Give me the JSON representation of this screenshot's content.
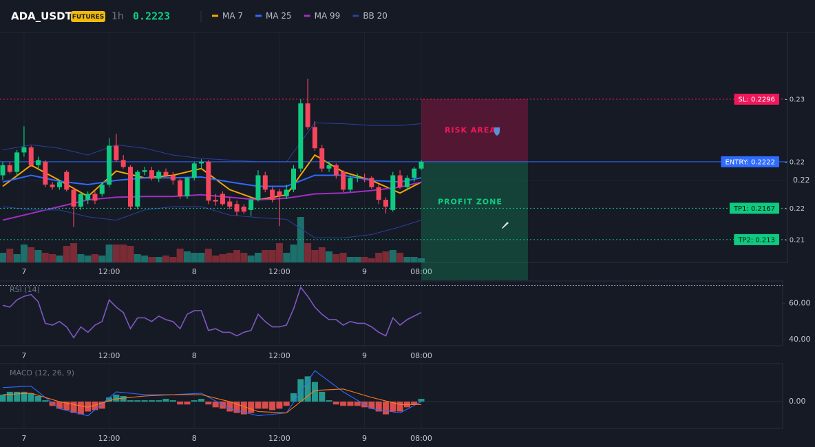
{
  "header": {
    "symbol": "ADA_USDT",
    "badge": "FUTURES",
    "interval": "1h",
    "price": 0.2223
  },
  "chart_data": [
    {
      "type": "candlestick",
      "categories": [
        null,
        null,
        null,
        "7",
        null,
        null,
        null,
        null,
        null,
        null,
        null,
        null,
        null,
        null,
        null,
        "12:00",
        null,
        null,
        null,
        null,
        null,
        null,
        null,
        null,
        null,
        null,
        null,
        "8",
        null,
        null,
        null,
        null,
        null,
        null,
        null,
        null,
        null,
        null,
        null,
        "12:00",
        null,
        null,
        null,
        null,
        null,
        null,
        null,
        null,
        null,
        null,
        null,
        "9",
        null,
        null,
        null,
        null,
        null,
        null,
        null,
        "08:00"
      ],
      "open": [
        0.2206,
        0.2218,
        0.221,
        0.2233,
        0.2239,
        0.2218,
        0.2222,
        0.2195,
        0.2192,
        0.221,
        0.2189,
        0.2169,
        0.2177,
        0.2184,
        0.2184,
        0.2195,
        0.2241,
        0.2224,
        0.2216,
        0.2169,
        0.221,
        0.2212,
        0.2202,
        0.221,
        0.2206,
        0.22,
        0.2181,
        0.2203,
        0.222,
        0.2222,
        0.2177,
        0.2184,
        0.2175,
        0.2172,
        0.2169,
        0.2165,
        0.2177,
        0.2206,
        0.2189,
        0.2187,
        0.2181,
        0.2189,
        0.2214,
        0.2291,
        0.2263,
        0.2238,
        0.2214,
        0.2218,
        0.221,
        0.2189,
        0.2203,
        0.2203,
        0.2203,
        0.2192,
        0.2177,
        0.2165,
        0.2206,
        0.2192,
        0.2203,
        0.2214
      ],
      "high": [
        0.2222,
        0.2222,
        0.2236,
        0.2264,
        0.2241,
        0.2228,
        0.2224,
        0.2198,
        0.22,
        0.2212,
        0.2192,
        0.2186,
        0.2187,
        0.2187,
        0.2198,
        0.225,
        0.2255,
        0.223,
        0.2218,
        0.2212,
        0.2216,
        0.2216,
        0.2212,
        0.2214,
        0.221,
        0.2202,
        0.2204,
        0.2222,
        0.2225,
        0.2224,
        0.2184,
        0.2187,
        0.218,
        0.2176,
        0.2172,
        0.218,
        0.2212,
        0.221,
        0.2192,
        0.219,
        0.2195,
        0.2218,
        0.2296,
        0.232,
        0.227,
        0.2242,
        0.2222,
        0.222,
        0.2212,
        0.2206,
        0.2208,
        0.2208,
        0.2205,
        0.2196,
        0.218,
        0.221,
        0.2212,
        0.2206,
        0.2216,
        0.2224
      ],
      "low": [
        0.22,
        0.2208,
        0.2206,
        0.2228,
        0.2216,
        0.2214,
        0.2192,
        0.2189,
        0.2189,
        0.2187,
        0.2145,
        0.2165,
        0.2172,
        0.2172,
        0.2181,
        0.2192,
        0.2222,
        0.2214,
        0.2165,
        0.2166,
        0.2206,
        0.22,
        0.2198,
        0.2204,
        0.2195,
        0.2178,
        0.2178,
        0.22,
        0.2214,
        0.2172,
        0.217,
        0.217,
        0.2166,
        0.2158,
        0.216,
        0.2158,
        0.2175,
        0.2186,
        0.2174,
        0.2146,
        0.2178,
        0.2186,
        0.221,
        0.226,
        0.2235,
        0.221,
        0.221,
        0.2202,
        0.2186,
        0.2186,
        0.2198,
        0.2198,
        0.219,
        0.2172,
        0.2161,
        0.2163,
        0.219,
        0.2188,
        0.2198,
        0.2212
      ],
      "close": [
        0.2218,
        0.221,
        0.2233,
        0.2239,
        0.2218,
        0.2224,
        0.2195,
        0.2192,
        0.2198,
        0.2189,
        0.2169,
        0.2184,
        0.2184,
        0.2176,
        0.2195,
        0.2241,
        0.2224,
        0.2216,
        0.2169,
        0.221,
        0.2212,
        0.2202,
        0.221,
        0.2206,
        0.22,
        0.2181,
        0.2203,
        0.222,
        0.2222,
        0.2176,
        0.2175,
        0.2172,
        0.2169,
        0.2163,
        0.2163,
        0.2177,
        0.2206,
        0.2189,
        0.2177,
        0.2181,
        0.2189,
        0.2214,
        0.2291,
        0.2263,
        0.2238,
        0.2214,
        0.2218,
        0.2206,
        0.2189,
        0.2203,
        0.2204,
        0.2202,
        0.2192,
        0.2177,
        0.2169,
        0.2206,
        0.2192,
        0.2203,
        0.2214,
        0.2222
      ],
      "up_color": "#0ecb81",
      "down_color": "#f6465d",
      "ylim": [
        0.2103,
        0.2375
      ],
      "yticks": [
        0.22
      ],
      "grid": true,
      "series": [
        {
          "name": "MA 7",
          "color": "#f7a600",
          "x": [
            0,
            4,
            8,
            12,
            16,
            20,
            24,
            28,
            32,
            36,
            40,
            44,
            48,
            52,
            56,
            59
          ],
          "values": [
            0.2193,
            0.2218,
            0.22,
            0.2181,
            0.2211,
            0.2203,
            0.2206,
            0.2214,
            0.2189,
            0.2177,
            0.2183,
            0.223,
            0.221,
            0.22,
            0.2185,
            0.2198
          ]
        },
        {
          "name": "MA 25",
          "color": "#2f6bff",
          "x": [
            0,
            4,
            8,
            12,
            16,
            20,
            24,
            28,
            32,
            36,
            40,
            44,
            48,
            52,
            56,
            59
          ],
          "values": [
            0.2198,
            0.2206,
            0.2199,
            0.2195,
            0.22,
            0.2203,
            0.2203,
            0.2204,
            0.2198,
            0.2193,
            0.2193,
            0.2206,
            0.2206,
            0.22,
            0.2198,
            0.2203
          ]
        },
        {
          "name": "MA 99",
          "color": "#a22fc4",
          "x": [
            0,
            4,
            8,
            12,
            16,
            20,
            24,
            28,
            32,
            36,
            40,
            44,
            48,
            52,
            56,
            59
          ],
          "values": [
            0.2153,
            0.2161,
            0.2169,
            0.2177,
            0.218,
            0.2181,
            0.2181,
            0.2183,
            0.218,
            0.2177,
            0.2179,
            0.2184,
            0.2185,
            0.2188,
            0.2192,
            0.2198
          ]
        },
        {
          "name": "BB 20",
          "color": "#2b3f9e",
          "x": [
            0,
            4,
            8,
            12,
            16,
            20,
            24,
            28,
            32,
            36,
            40,
            44,
            48,
            52,
            56,
            59
          ],
          "upper": [
            0.2236,
            0.2242,
            0.2238,
            0.223,
            0.2242,
            0.2238,
            0.223,
            0.2226,
            0.2224,
            0.2222,
            0.2222,
            0.2268,
            0.2267,
            0.2265,
            0.2265,
            0.2267
          ],
          "lower": [
            0.2169,
            0.2165,
            0.2165,
            0.2157,
            0.2153,
            0.2165,
            0.2169,
            0.2169,
            0.2159,
            0.2156,
            0.2154,
            0.2132,
            0.2132,
            0.2136,
            0.2145,
            0.2153
          ]
        }
      ],
      "volume": {
        "vlim": [
          0,
          100
        ],
        "values": [
          14,
          20,
          12,
          26,
          22,
          18,
          14,
          12,
          10,
          24,
          28,
          12,
          10,
          12,
          10,
          26,
          26,
          26,
          24,
          12,
          10,
          8,
          8,
          10,
          8,
          20,
          16,
          14,
          14,
          20,
          10,
          12,
          14,
          18,
          14,
          10,
          14,
          18,
          18,
          28,
          14,
          26,
          66,
          28,
          18,
          22,
          16,
          12,
          14,
          8,
          8,
          8,
          6,
          14,
          16,
          18,
          14,
          8,
          8,
          6
        ]
      },
      "levels": [
        {
          "label": "SL: 0.2296",
          "value": 0.2296,
          "axis_label": "- 0.23",
          "color": "#f0175a",
          "text_color": "#ffffff",
          "line_style": "dotted"
        },
        {
          "label": "ENTRY: 0.2222",
          "value": 0.2222,
          "axis_label": "- 0.22",
          "color": "#2f6bff",
          "text_color": "#ffffff",
          "line_style": "solid"
        },
        {
          "label": "TP1: 0.2167",
          "value": 0.2167,
          "axis_label": "- 0.22",
          "color": "#0ecb81",
          "text_color": "#0b1a12",
          "line_style": "dotted"
        },
        {
          "label": "TP2: 0.213",
          "value": 0.213,
          "axis_label": "- 0.21",
          "color": "#0ecb81",
          "text_color": "#0b1a12",
          "line_style": "dotted"
        }
      ],
      "zones": [
        {
          "label": "RISK AREA",
          "color": "#f0175a"
        },
        {
          "label": "PROFIT ZONE",
          "color": "#0ecb81"
        }
      ]
    },
    {
      "type": "line",
      "title": "RSI (14)",
      "color": "#7e57c2",
      "values": [
        59,
        58,
        62,
        64,
        65,
        61,
        49,
        48,
        50,
        47,
        41,
        47,
        44,
        48,
        50,
        62,
        58,
        55,
        46,
        52,
        52,
        50,
        53,
        51,
        50,
        46,
        54,
        56,
        56,
        45,
        46,
        44,
        44,
        42,
        44,
        45,
        54,
        50,
        47,
        47,
        48,
        57,
        69,
        64,
        58,
        54,
        51,
        51,
        48,
        50,
        49,
        49,
        47,
        44,
        42,
        52,
        48,
        51,
        53,
        55
      ],
      "ylim": [
        36.5,
        72.5
      ],
      "yticks": [
        {
          "value": 60,
          "label": "60.00"
        },
        {
          "value": 40,
          "label": "40.00"
        }
      ],
      "overbought": 70
    },
    {
      "type": "macd",
      "title": "MACD (12, 26, 9)",
      "up_color": "#26a69a",
      "down_color": "#ef5350",
      "histogram": [
        0.0001,
        0.00014,
        0.00014,
        0.00014,
        0.00012,
        8e-05,
        2e-05,
        -6e-05,
        -0.0001,
        -0.00012,
        -0.00016,
        -0.00018,
        -0.00014,
        -0.00012,
        -0.0001,
        6e-05,
        0.0001,
        8e-05,
        2e-05,
        2e-05,
        2e-05,
        2e-05,
        2e-05,
        4e-05,
        2e-05,
        -4e-05,
        -4e-05,
        2e-05,
        4e-05,
        -4e-05,
        -8e-05,
        -0.0001,
        -0.00014,
        -0.00016,
        -0.00018,
        -0.00016,
        -0.0001,
        -0.0001,
        -0.00012,
        -0.0001,
        -6e-05,
        0.00012,
        0.00032,
        0.00036,
        0.00028,
        0.00014,
        2e-05,
        -4e-05,
        -6e-05,
        -6e-05,
        -6e-05,
        -8e-05,
        -0.0001,
        -0.00014,
        -0.00018,
        -0.00014,
        -0.00014,
        -8e-05,
        -4e-05,
        4e-05
      ],
      "series": [
        {
          "color": "#2f6bff",
          "x": [
            0,
            4,
            8,
            12,
            16,
            20,
            24,
            28,
            32,
            36,
            40,
            44,
            48,
            52,
            56,
            59
          ],
          "values": [
            0.0002,
            0.00022,
            -0.0001,
            -0.0002,
            0.00014,
            0.0001,
            0.0001,
            0.00012,
            -0.0001,
            -0.0002,
            -0.00016,
            0.00044,
            0.00014,
            -0.0001,
            -0.00016,
            0
          ]
        },
        {
          "color": "#ff7a1a",
          "x": [
            0,
            4,
            8,
            12,
            16,
            20,
            24,
            28,
            32,
            36,
            40,
            44,
            48,
            52,
            56,
            59
          ],
          "values": [
            0.0001,
            0.00012,
            0,
            -8e-05,
            4e-05,
            8e-05,
            0.0001,
            0.0001,
            0,
            -0.00014,
            -0.00016,
            0.00016,
            0.00018,
            6e-05,
            -4e-05,
            -4e-05
          ]
        }
      ],
      "ylim": [
        -0.00038,
        0.00054
      ],
      "yticks": [
        {
          "value": 0,
          "label": "0.00"
        }
      ]
    }
  ]
}
